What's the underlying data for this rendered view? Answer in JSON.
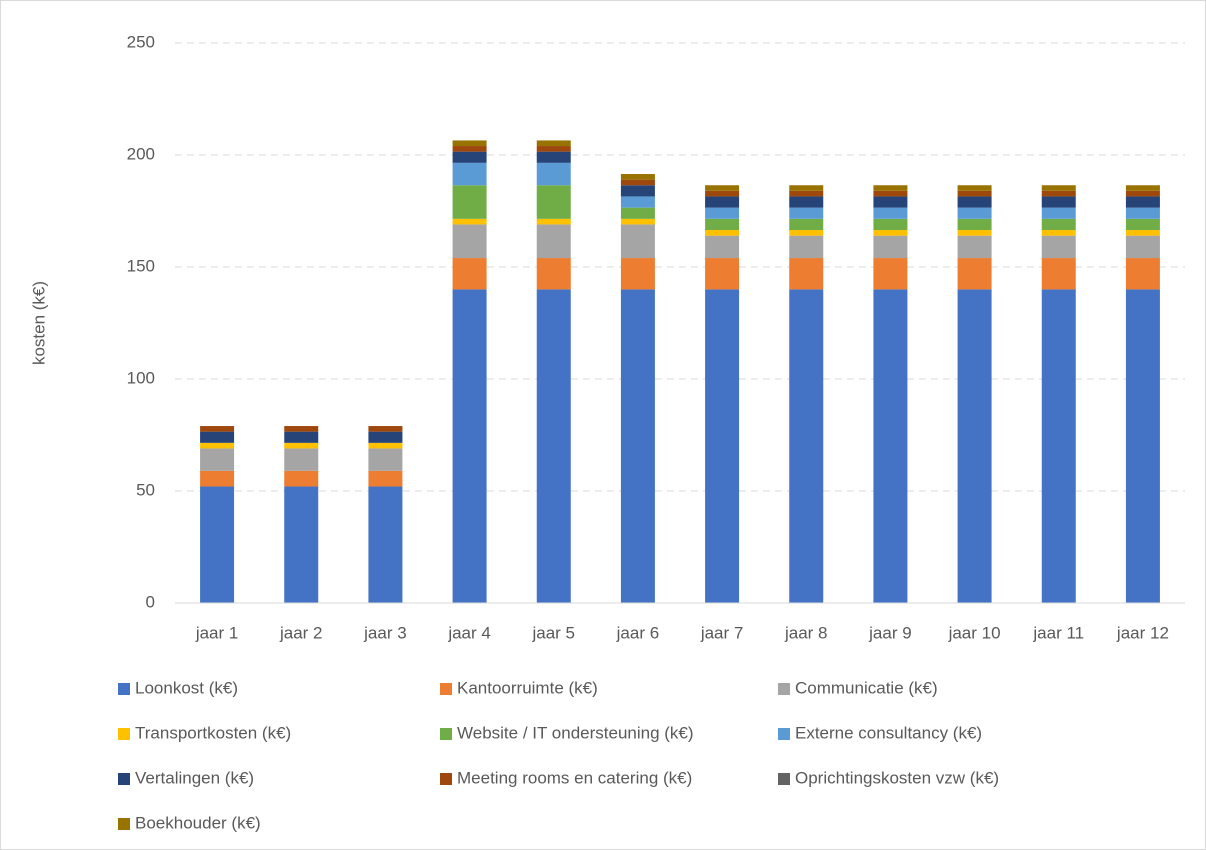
{
  "chart_data": {
    "type": "stacked_bar",
    "y_label": "kosten (k€)",
    "categories": [
      "jaar 1",
      "jaar 2",
      "jaar 3",
      "jaar 4",
      "jaar 5",
      "jaar 6",
      "jaar 7",
      "jaar 8",
      "jaar 9",
      "jaar 10",
      "jaar 11",
      "jaar 12"
    ],
    "ylim": [
      0,
      250
    ],
    "yticks": [
      0,
      50,
      100,
      150,
      200,
      250
    ],
    "grid": true,
    "series": [
      {
        "name": "Loonkost (k€)",
        "color": "#4472c4",
        "values": [
          52,
          52,
          52,
          140,
          140,
          140,
          140,
          140,
          140,
          140,
          140,
          140
        ]
      },
      {
        "name": "Kantoorruimte (k€)",
        "color": "#ed7d31",
        "values": [
          7,
          7,
          7,
          14,
          14,
          14,
          14,
          14,
          14,
          14,
          14,
          14
        ]
      },
      {
        "name": "Communicatie (k€)",
        "color": "#a5a5a5",
        "values": [
          10,
          10,
          10,
          15,
          15,
          15,
          10,
          10,
          10,
          10,
          10,
          10
        ]
      },
      {
        "name": "Transportkosten (k€)",
        "color": "#ffc000",
        "values": [
          2.5,
          2.5,
          2.5,
          2.5,
          2.5,
          2.5,
          2.5,
          2.5,
          2.5,
          2.5,
          2.5,
          2.5
        ]
      },
      {
        "name": "Website / IT ondersteuning (k€)",
        "color": "#70ad47",
        "values": [
          0,
          0,
          0,
          15,
          15,
          5,
          5,
          5,
          5,
          5,
          5,
          5
        ]
      },
      {
        "name": "Externe consultancy (k€)",
        "color": "#5b9bd5",
        "values": [
          0,
          0,
          0,
          10,
          10,
          5,
          5,
          5,
          5,
          5,
          5,
          5
        ]
      },
      {
        "name": "Vertalingen (k€)",
        "color": "#264478",
        "values": [
          5,
          5,
          5,
          5,
          5,
          5,
          5,
          5,
          5,
          5,
          5,
          5
        ]
      },
      {
        "name": "Meeting rooms en catering (k€)",
        "color": "#9e480e",
        "values": [
          2.5,
          2.5,
          2.5,
          2.5,
          2.5,
          2.5,
          2.5,
          2.5,
          2.5,
          2.5,
          2.5,
          2.5
        ]
      },
      {
        "name": "Oprichtingskosten vzw (k€)",
        "color": "#636363",
        "values": [
          0,
          0,
          0,
          0,
          0,
          0,
          0,
          0,
          0,
          0,
          0,
          0
        ]
      },
      {
        "name": "Boekhouder (k€)",
        "color": "#997300",
        "values": [
          0,
          0,
          0,
          2.5,
          2.5,
          2.5,
          2.5,
          2.5,
          2.5,
          2.5,
          2.5,
          2.5
        ]
      }
    ]
  }
}
